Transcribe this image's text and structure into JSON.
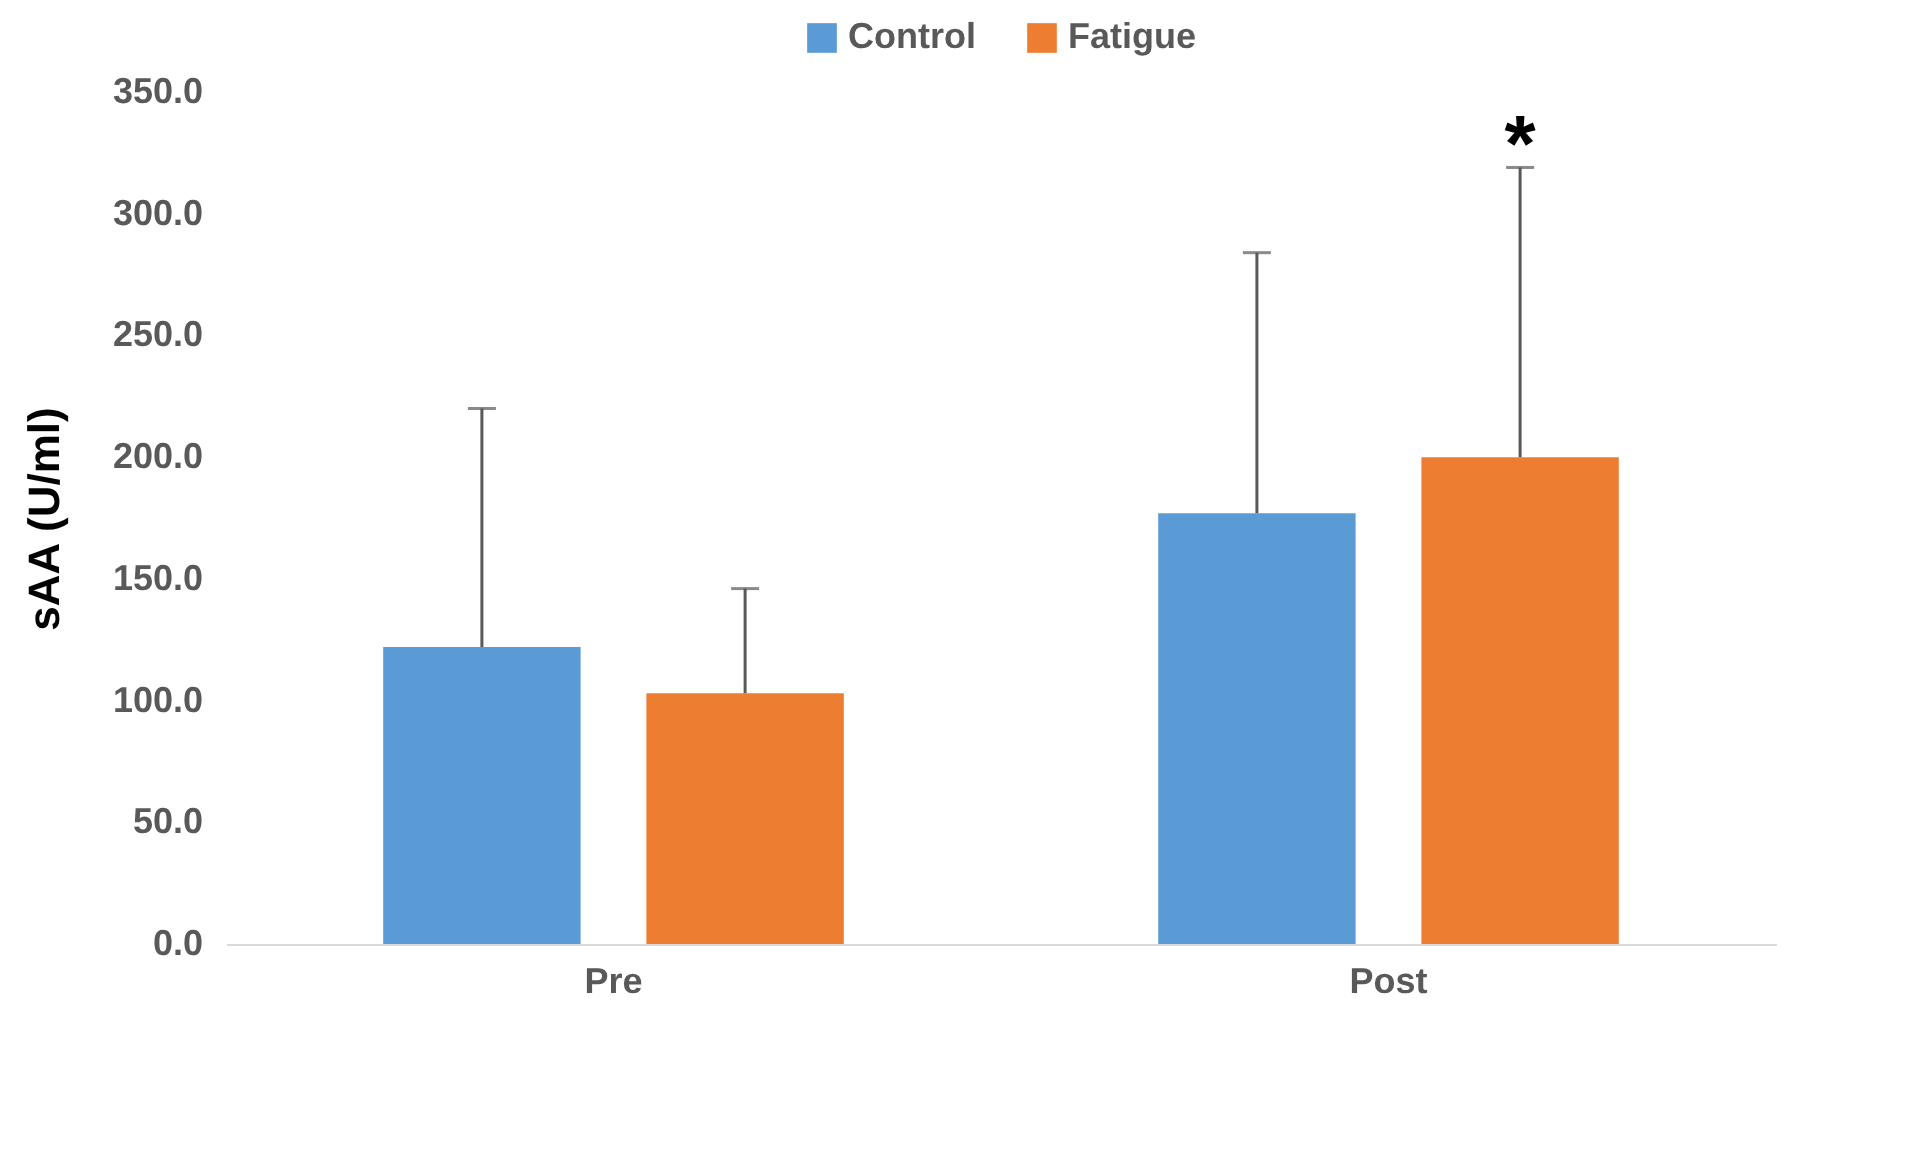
{
  "chart_data": {
    "type": "bar",
    "ylabel": "sAA (U/ml)",
    "categories": [
      "Pre",
      "Post"
    ],
    "series": [
      {
        "name": "Control",
        "color": "#5b9bd5",
        "values": [
          122,
          177
        ],
        "errors": [
          [
            122,
            220
          ],
          [
            177,
            284
          ]
        ]
      },
      {
        "name": "Fatigue",
        "color": "#ed7d31",
        "values": [
          103,
          200
        ],
        "errors": [
          [
            103,
            146
          ],
          [
            200,
            319
          ]
        ]
      }
    ],
    "ylim": [
      0,
      350
    ],
    "yticks": [
      {
        "value": 0,
        "label": "0.0"
      },
      {
        "value": 50,
        "label": "50.0"
      },
      {
        "value": 100,
        "label": "100.0"
      },
      {
        "value": 150,
        "label": "150.0"
      },
      {
        "value": 200,
        "label": "200.0"
      },
      {
        "value": 250,
        "label": "250.0"
      },
      {
        "value": 300,
        "label": "300.0"
      },
      {
        "value": 350,
        "label": "350.0"
      }
    ],
    "annotations": [
      "*"
    ],
    "legend": "top",
    "grid": false
  }
}
